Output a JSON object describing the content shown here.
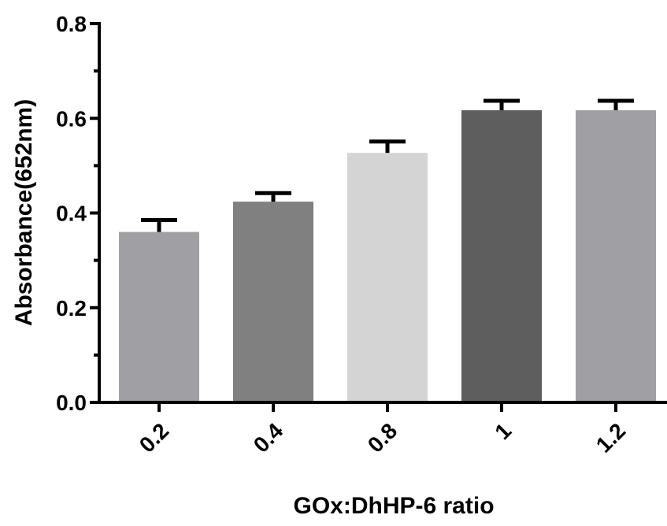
{
  "chart_data": {
    "type": "bar",
    "title": "",
    "xlabel": "GOx:DhHP-6 ratio",
    "ylabel": "Absorbance(652nm)",
    "ylim": [
      0,
      0.8
    ],
    "yticks": [
      "0.0",
      "0.2",
      "0.4",
      "0.6",
      "0.8"
    ],
    "yticks_values": [
      0,
      0.2,
      0.4,
      0.6,
      0.8
    ],
    "categories": [
      "0.2",
      "0.4",
      "0.8",
      "1",
      "1.2"
    ],
    "values": [
      0.36,
      0.424,
      0.527,
      0.617,
      0.617
    ],
    "errors": [
      0.025,
      0.018,
      0.024,
      0.02,
      0.02
    ],
    "bar_colors": [
      "#a0a0a4",
      "#808080",
      "#d4d4d4",
      "#5e5e5e",
      "#a0a0a4"
    ],
    "grid": false,
    "legend": "none"
  }
}
